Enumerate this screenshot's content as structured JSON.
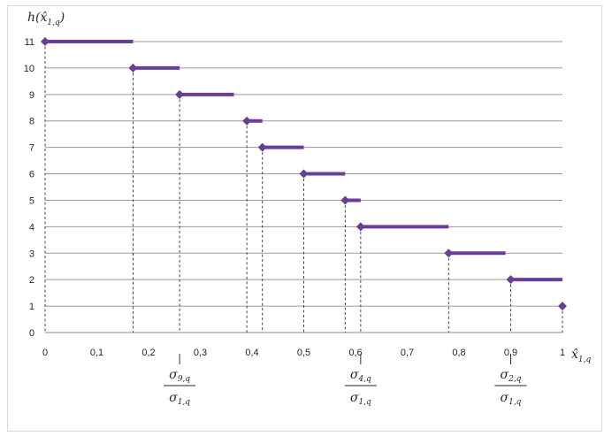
{
  "chart_data": {
    "type": "scatter",
    "ylabel": "h(x̂",
    "ylabel_sub": "1,q",
    "ylabel_close": ")",
    "xlabel": "x̂",
    "xlabel_sub": "1,q",
    "xlim": [
      0,
      1
    ],
    "ylim": [
      0,
      11
    ],
    "x_ticks": [
      0,
      0.1,
      0.2,
      0.3,
      0.4,
      0.5,
      0.6,
      0.7,
      0.8,
      0.9,
      1
    ],
    "x_tick_labels": [
      "0",
      "0,1",
      "0,2",
      "0,3",
      "0,4",
      "0,5",
      "0,6",
      "0,7",
      "0,8",
      "0,9",
      "1"
    ],
    "y_ticks": [
      0,
      1,
      2,
      3,
      4,
      5,
      6,
      7,
      8,
      9,
      10,
      11
    ],
    "y_tick_labels": [
      "0",
      "1",
      "2",
      "3",
      "4",
      "5",
      "6",
      "7",
      "8",
      "9",
      "10",
      "11"
    ],
    "grid": "horizontal",
    "marker_color": "#6a3d96",
    "points": [
      {
        "x": 0.0,
        "y": 11,
        "seg_end": 0.17
      },
      {
        "x": 0.17,
        "y": 10,
        "seg_end": 0.26
      },
      {
        "x": 0.26,
        "y": 9,
        "seg_end": 0.365
      },
      {
        "x": 0.39,
        "y": 8,
        "seg_end": 0.42
      },
      {
        "x": 0.42,
        "y": 7,
        "seg_end": 0.5
      },
      {
        "x": 0.5,
        "y": 6,
        "seg_end": 0.58
      },
      {
        "x": 0.58,
        "y": 5,
        "seg_end": 0.61
      },
      {
        "x": 0.61,
        "y": 4,
        "seg_end": 0.78
      },
      {
        "x": 0.78,
        "y": 3,
        "seg_end": 0.89
      },
      {
        "x": 0.9,
        "y": 2,
        "seg_end": 1.0
      },
      {
        "x": 1.0,
        "y": 1,
        "seg_end": 1.0
      }
    ],
    "annotations": [
      {
        "x": 0.26,
        "num": "σ",
        "num_sub": "9,q",
        "den": "σ",
        "den_sub": "1,q"
      },
      {
        "x": 0.61,
        "num": "σ",
        "num_sub": "4,q",
        "den": "σ",
        "den_sub": "1,q"
      },
      {
        "x": 0.9,
        "num": "σ",
        "num_sub": "2,q",
        "den": "σ",
        "den_sub": "1,q"
      }
    ]
  }
}
